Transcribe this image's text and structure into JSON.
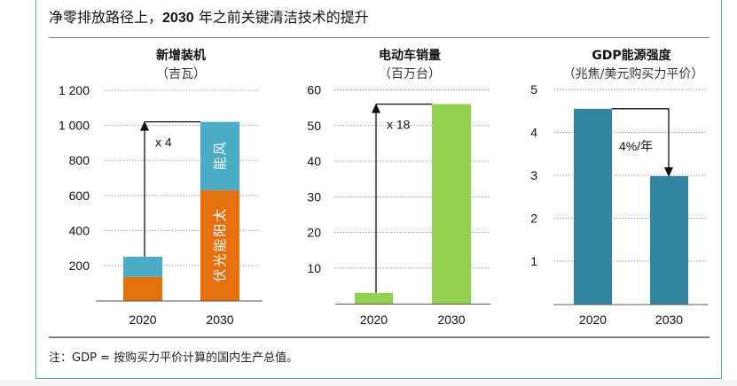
{
  "title": {
    "prefix": "净零排放路径上，",
    "year": "2030",
    "suffix": " 年之前关键清洁技术的提升"
  },
  "footnote": "注：GDP = 按购买力平价计算的国内生产总值。",
  "colors": {
    "border": "#4aa9bb",
    "solar": "#e4700e",
    "wind": "#4bacc6",
    "ev": "#92d050",
    "intensity": "#31859c"
  },
  "chart_data": [
    {
      "type": "bar",
      "stacked": true,
      "title": "新增装机",
      "unit": "（吉瓦）",
      "categories": [
        "2020",
        "2030"
      ],
      "series": [
        {
          "name": "太阳能光伏",
          "values": [
            135,
            630
          ]
        },
        {
          "name": "风能",
          "values": [
            115,
            390
          ]
        }
      ],
      "segment_labels": {
        "2030": [
          "太阳能光伏",
          "风能"
        ]
      },
      "yticks": [
        200,
        400,
        600,
        800,
        1000,
        1200
      ],
      "ytick_labels": [
        "200",
        "400",
        "600",
        "800",
        "1 000",
        "1 200"
      ],
      "ylim": [
        0,
        1200
      ],
      "grid": true,
      "annotation": {
        "text": "x 4",
        "type": "arrow-up",
        "from": "2020",
        "to": "2030"
      }
    },
    {
      "type": "bar",
      "title": "电动车销量",
      "unit": "（百万台）",
      "categories": [
        "2020",
        "2030"
      ],
      "values": [
        3,
        56
      ],
      "yticks": [
        10,
        20,
        30,
        40,
        50,
        60
      ],
      "ytick_labels": [
        "10",
        "20",
        "30",
        "40",
        "50",
        "60"
      ],
      "ylim": [
        0,
        60
      ],
      "grid": true,
      "annotation": {
        "text": "x 18",
        "type": "arrow-up",
        "from": "2020",
        "to": "2030"
      }
    },
    {
      "type": "bar",
      "title": "GDP能源强度",
      "unit": "（兆焦/美元购买力平价）",
      "categories": [
        "2020",
        "2030"
      ],
      "values": [
        4.55,
        2.98
      ],
      "yticks": [
        1,
        2,
        3,
        4,
        5
      ],
      "ytick_labels": [
        "1",
        "2",
        "3",
        "4",
        "5"
      ],
      "ylim": [
        0,
        5
      ],
      "grid": true,
      "annotation": {
        "text": "4%/年",
        "type": "arrow-down",
        "from": "2020",
        "to": "2030"
      }
    }
  ]
}
